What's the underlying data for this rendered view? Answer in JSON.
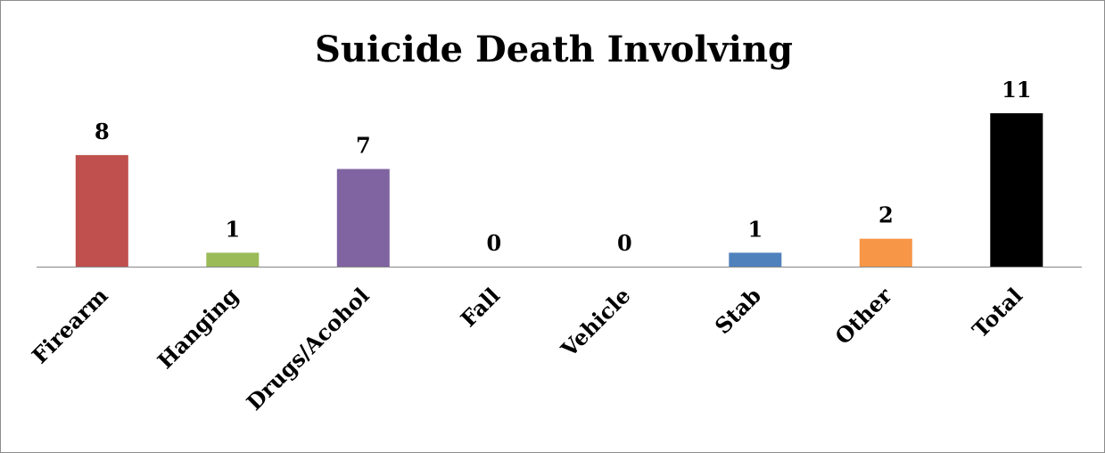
{
  "chart_data": {
    "type": "bar",
    "title": "Suicide Death Involving",
    "xlabel": "",
    "ylabel": "",
    "categories": [
      "Firearm",
      "Hanging",
      "Drugs/Acohol",
      "Fall",
      "Vehicle",
      "Stab",
      "Other",
      "Total"
    ],
    "values": [
      8,
      1,
      7,
      0,
      0,
      1,
      2,
      11
    ],
    "colors": [
      "#c0504d",
      "#9bbb59",
      "#8064a2",
      "#4f81bd",
      "#4bacc6",
      "#4f81bd",
      "#f79646",
      "#000000"
    ],
    "ylim": [
      0,
      11
    ],
    "grid": false,
    "legend": "none",
    "data_labels": true
  }
}
